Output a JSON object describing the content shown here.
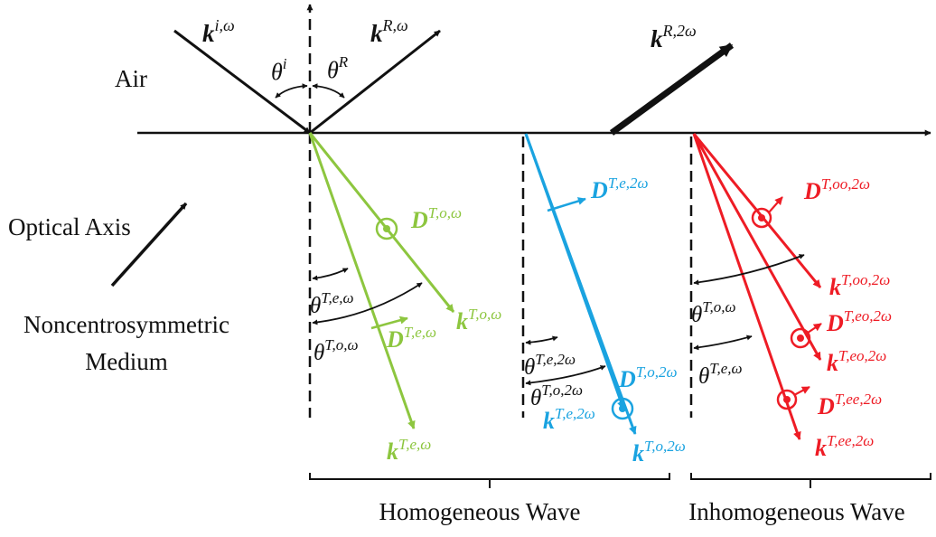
{
  "colors": {
    "black": "#111111",
    "green": "#8dc63f",
    "cyan": "#1aa3e0",
    "red": "#ee1c25"
  },
  "media": {
    "air": "Air",
    "optical_axis": "Optical Axis",
    "medium_line1": "Noncentrosymmetric",
    "medium_line2": "Medium"
  },
  "incident": {
    "k_incident": {
      "base": "k",
      "sup": "i,ω"
    },
    "k_reflected": {
      "base": "k",
      "sup": "R,ω"
    },
    "k_reflected_2w": {
      "base": "k",
      "sup": "R,2ω"
    },
    "theta_incident": {
      "base": "θ",
      "sup": "i"
    },
    "theta_reflected": {
      "base": "θ",
      "sup": "R"
    }
  },
  "fundamental": {
    "D_o": {
      "base": "D",
      "sup": "T,o,ω"
    },
    "D_e": {
      "base": "D",
      "sup": "T,e,ω"
    },
    "k_o": {
      "base": "k",
      "sup": "T,o,ω"
    },
    "k_e": {
      "base": "k",
      "sup": "T,e,ω"
    },
    "theta_e": {
      "base": "θ",
      "sup": "T,e,ω"
    },
    "theta_o": {
      "base": "θ",
      "sup": "T,o,ω"
    }
  },
  "homogeneous_sh": {
    "D_e": {
      "base": "D",
      "sup": "T,e,2ω"
    },
    "D_o": {
      "base": "D",
      "sup": "T,o,2ω"
    },
    "k_e": {
      "base": "k",
      "sup": "T,e,2ω"
    },
    "k_o": {
      "base": "k",
      "sup": "T,o,2ω"
    },
    "theta_e": {
      "base": "θ",
      "sup": "T,e,2ω"
    },
    "theta_o": {
      "base": "θ",
      "sup": "T,o,2ω"
    }
  },
  "inhomogeneous_sh": {
    "D_oo": {
      "base": "D",
      "sup": "T,oo,2ω"
    },
    "k_oo": {
      "base": "k",
      "sup": "T,oo,2ω"
    },
    "D_eo": {
      "base": "D",
      "sup": "T,eo,2ω"
    },
    "k_eo": {
      "base": "k",
      "sup": "T,eo,2ω"
    },
    "D_ee": {
      "base": "D",
      "sup": "T,ee,2ω"
    },
    "k_ee": {
      "base": "k",
      "sup": "T,ee,2ω"
    },
    "theta_o": {
      "base": "θ",
      "sup": "T,o,ω"
    },
    "theta_e": {
      "base": "θ",
      "sup": "T,e,ω"
    }
  },
  "groups": {
    "homogeneous": "Homogeneous Wave",
    "inhomogeneous": "Inhomogeneous Wave"
  }
}
